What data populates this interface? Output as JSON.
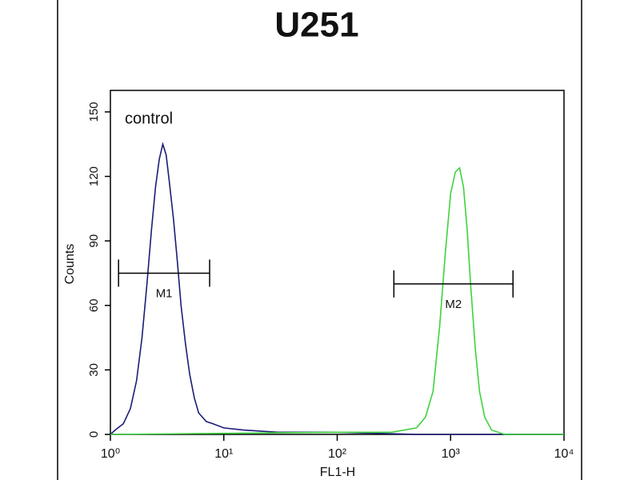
{
  "chart_data": {
    "type": "histogram-overlay",
    "title": "U251",
    "annotation": "control",
    "x_label": "FL1-H",
    "y_label": "Counts",
    "xscale": "log",
    "xlim": [
      1,
      10000
    ],
    "xticks": [
      {
        "value": 1,
        "label": "10⁰"
      },
      {
        "value": 10,
        "label": "10¹"
      },
      {
        "value": 100,
        "label": "10²"
      },
      {
        "value": 1000,
        "label": "10³"
      },
      {
        "value": 10000,
        "label": "10⁴"
      }
    ],
    "ylim": [
      0,
      160
    ],
    "yticks": [
      0,
      30,
      60,
      90,
      120,
      150
    ],
    "series": [
      {
        "color": "#1c1c78",
        "x": [
          1.0,
          1.1,
          1.3,
          1.5,
          1.7,
          1.9,
          2.1,
          2.3,
          2.5,
          2.7,
          2.9,
          3.1,
          3.3,
          3.6,
          3.9,
          4.2,
          4.6,
          5.0,
          5.5,
          6.0,
          7,
          8,
          10,
          15,
          30,
          100,
          500,
          10000
        ],
        "values": [
          0,
          2,
          5,
          12,
          25,
          45,
          70,
          95,
          115,
          128,
          135,
          130,
          118,
          100,
          80,
          60,
          42,
          28,
          17,
          10,
          6,
          5,
          3,
          2,
          1,
          1,
          0,
          0
        ]
      },
      {
        "color": "#3fd23f",
        "x": [
          1,
          100,
          300,
          500,
          600,
          700,
          800,
          900,
          1000,
          1100,
          1200,
          1300,
          1400,
          1500,
          1650,
          1800,
          2000,
          2300,
          3000,
          10000
        ],
        "values": [
          0,
          1,
          1,
          3,
          8,
          20,
          50,
          85,
          112,
          122,
          124,
          115,
          95,
          70,
          40,
          20,
          8,
          2,
          0,
          0
        ]
      }
    ],
    "markers": [
      {
        "label": "M1",
        "x": [
          1.18,
          7.5
        ],
        "y": 75
      },
      {
        "label": "M2",
        "x": [
          316,
          3550
        ],
        "y": 70
      }
    ]
  }
}
